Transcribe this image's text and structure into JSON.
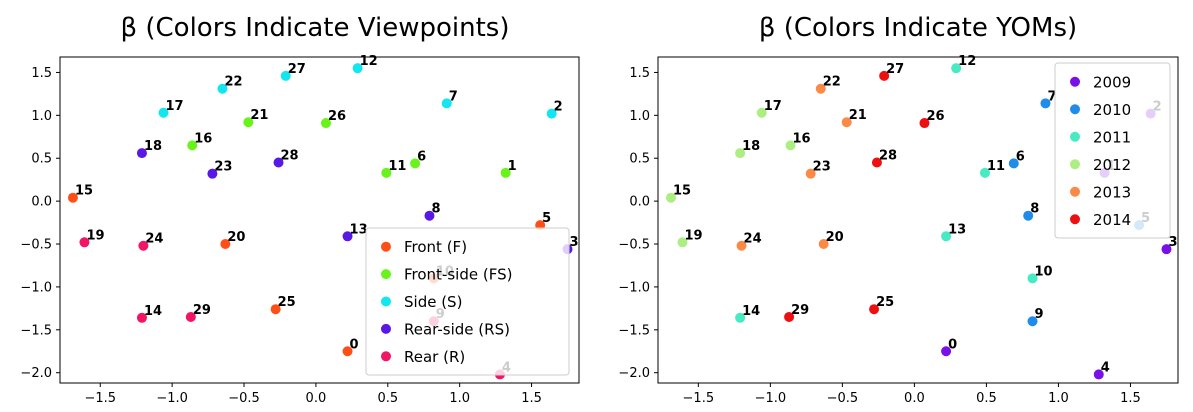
{
  "chart_data": [
    {
      "type": "scatter",
      "title": "β (Colors Indicate Viewpoints)",
      "xlabel": "",
      "ylabel": "",
      "xlim": [
        -1.78,
        1.83
      ],
      "ylim": [
        -2.12,
        1.68
      ],
      "xticks": [
        -1.5,
        -1.0,
        -0.5,
        0.0,
        0.5,
        1.0,
        1.5
      ],
      "xtick_labels": [
        "−1.5",
        "−1.0",
        "−0.5",
        "0.0",
        "0.5",
        "1.0",
        "1.5"
      ],
      "yticks": [
        1.5,
        1.0,
        0.5,
        0.0,
        -0.5,
        -1.0,
        -1.5,
        -2.0
      ],
      "ytick_labels": [
        "1.5",
        "1.0",
        "0.5",
        "0.0",
        "−0.5",
        "−1.0",
        "−1.5",
        "−2.0"
      ],
      "legend_position": "lower-right",
      "series": [
        {
          "name": "Front (F)",
          "color": "#ff4f16"
        },
        {
          "name": "Front-side (FS)",
          "color": "#68f41a"
        },
        {
          "name": "Side (S)",
          "color": "#12e6f0"
        },
        {
          "name": "Rear-side (RS)",
          "color": "#5a18e6"
        },
        {
          "name": "Rear (R)",
          "color": "#f21466"
        }
      ],
      "points": [
        {
          "label": "0",
          "x": 0.22,
          "y": -1.75,
          "series": 0
        },
        {
          "label": "1",
          "x": 1.32,
          "y": 0.33,
          "series": 1
        },
        {
          "label": "2",
          "x": 1.64,
          "y": 1.02,
          "series": 2
        },
        {
          "label": "3",
          "x": 1.75,
          "y": -0.56,
          "series": 3
        },
        {
          "label": "4",
          "x": 1.28,
          "y": -2.02,
          "series": 4
        },
        {
          "label": "5",
          "x": 1.56,
          "y": -0.28,
          "series": 0
        },
        {
          "label": "6",
          "x": 0.69,
          "y": 0.44,
          "series": 1
        },
        {
          "label": "7",
          "x": 0.91,
          "y": 1.14,
          "series": 2
        },
        {
          "label": "8",
          "x": 0.79,
          "y": -0.17,
          "series": 3
        },
        {
          "label": "9",
          "x": 0.82,
          "y": -1.4,
          "series": 4
        },
        {
          "label": "10",
          "x": 0.82,
          "y": -0.9,
          "series": 0
        },
        {
          "label": "11",
          "x": 0.49,
          "y": 0.33,
          "series": 1
        },
        {
          "label": "12",
          "x": 0.29,
          "y": 1.55,
          "series": 2
        },
        {
          "label": "13",
          "x": 0.22,
          "y": -0.41,
          "series": 3
        },
        {
          "label": "14",
          "x": -1.21,
          "y": -1.36,
          "series": 4
        },
        {
          "label": "15",
          "x": -1.69,
          "y": 0.04,
          "series": 0
        },
        {
          "label": "16",
          "x": -0.86,
          "y": 0.65,
          "series": 1
        },
        {
          "label": "17",
          "x": -1.06,
          "y": 1.03,
          "series": 2
        },
        {
          "label": "18",
          "x": -1.21,
          "y": 0.56,
          "series": 3
        },
        {
          "label": "19",
          "x": -1.61,
          "y": -0.48,
          "series": 4
        },
        {
          "label": "20",
          "x": -0.63,
          "y": -0.5,
          "series": 0
        },
        {
          "label": "21",
          "x": -0.47,
          "y": 0.92,
          "series": 1
        },
        {
          "label": "22",
          "x": -0.65,
          "y": 1.31,
          "series": 2
        },
        {
          "label": "23",
          "x": -0.72,
          "y": 0.32,
          "series": 3
        },
        {
          "label": "24",
          "x": -1.2,
          "y": -0.52,
          "series": 4
        },
        {
          "label": "25",
          "x": -0.28,
          "y": -1.26,
          "series": 0
        },
        {
          "label": "26",
          "x": 0.07,
          "y": 0.91,
          "series": 1
        },
        {
          "label": "27",
          "x": -0.21,
          "y": 1.46,
          "series": 2
        },
        {
          "label": "28",
          "x": -0.26,
          "y": 0.45,
          "series": 3
        },
        {
          "label": "29",
          "x": -0.87,
          "y": -1.35,
          "series": 4
        }
      ]
    },
    {
      "type": "scatter",
      "title": "β (Colors Indicate YOMs)",
      "xlabel": "",
      "ylabel": "",
      "xlim": [
        -1.78,
        1.83
      ],
      "ylim": [
        -2.12,
        1.68
      ],
      "xticks": [
        -1.5,
        -1.0,
        -0.5,
        0.0,
        0.5,
        1.0,
        1.5
      ],
      "xtick_labels": [
        "−1.5",
        "−1.0",
        "−0.5",
        "0.0",
        "0.5",
        "1.0",
        "1.5"
      ],
      "yticks": [
        1.5,
        1.0,
        0.5,
        0.0,
        -0.5,
        -1.0,
        -1.5,
        -2.0
      ],
      "ytick_labels": [
        "1.5",
        "1.0",
        "0.5",
        "0.0",
        "−0.5",
        "−1.0",
        "−1.5",
        "−2.0"
      ],
      "legend_position": "upper-right",
      "series": [
        {
          "name": "2009",
          "color": "#7a10e8"
        },
        {
          "name": "2010",
          "color": "#1e8ce8"
        },
        {
          "name": "2011",
          "color": "#48eac4"
        },
        {
          "name": "2012",
          "color": "#acee82"
        },
        {
          "name": "2013",
          "color": "#fb8a46"
        },
        {
          "name": "2014",
          "color": "#ee1010"
        }
      ],
      "points": [
        {
          "label": "0",
          "x": 0.22,
          "y": -1.75,
          "series": 0
        },
        {
          "label": "1",
          "x": 1.32,
          "y": 0.33,
          "series": 0
        },
        {
          "label": "2",
          "x": 1.64,
          "y": 1.02,
          "series": 0
        },
        {
          "label": "3",
          "x": 1.75,
          "y": -0.56,
          "series": 0
        },
        {
          "label": "4",
          "x": 1.28,
          "y": -2.02,
          "series": 0
        },
        {
          "label": "5",
          "x": 1.56,
          "y": -0.28,
          "series": 1
        },
        {
          "label": "6",
          "x": 0.69,
          "y": 0.44,
          "series": 1
        },
        {
          "label": "7",
          "x": 0.91,
          "y": 1.14,
          "series": 1
        },
        {
          "label": "8",
          "x": 0.79,
          "y": -0.17,
          "series": 1
        },
        {
          "label": "9",
          "x": 0.82,
          "y": -1.4,
          "series": 1
        },
        {
          "label": "10",
          "x": 0.82,
          "y": -0.9,
          "series": 2
        },
        {
          "label": "11",
          "x": 0.49,
          "y": 0.33,
          "series": 2
        },
        {
          "label": "12",
          "x": 0.29,
          "y": 1.55,
          "series": 2
        },
        {
          "label": "13",
          "x": 0.22,
          "y": -0.41,
          "series": 2
        },
        {
          "label": "14",
          "x": -1.21,
          "y": -1.36,
          "series": 2
        },
        {
          "label": "15",
          "x": -1.69,
          "y": 0.04,
          "series": 3
        },
        {
          "label": "16",
          "x": -0.86,
          "y": 0.65,
          "series": 3
        },
        {
          "label": "17",
          "x": -1.06,
          "y": 1.03,
          "series": 3
        },
        {
          "label": "18",
          "x": -1.21,
          "y": 0.56,
          "series": 3
        },
        {
          "label": "19",
          "x": -1.61,
          "y": -0.48,
          "series": 3
        },
        {
          "label": "20",
          "x": -0.63,
          "y": -0.5,
          "series": 4
        },
        {
          "label": "21",
          "x": -0.47,
          "y": 0.92,
          "series": 4
        },
        {
          "label": "22",
          "x": -0.65,
          "y": 1.31,
          "series": 4
        },
        {
          "label": "23",
          "x": -0.72,
          "y": 0.32,
          "series": 4
        },
        {
          "label": "24",
          "x": -1.2,
          "y": -0.52,
          "series": 4
        },
        {
          "label": "25",
          "x": -0.28,
          "y": -1.26,
          "series": 5
        },
        {
          "label": "26",
          "x": 0.07,
          "y": 0.91,
          "series": 5
        },
        {
          "label": "27",
          "x": -0.21,
          "y": 1.46,
          "series": 5
        },
        {
          "label": "28",
          "x": -0.26,
          "y": 0.45,
          "series": 5
        },
        {
          "label": "29",
          "x": -0.87,
          "y": -1.35,
          "series": 5
        }
      ]
    }
  ]
}
